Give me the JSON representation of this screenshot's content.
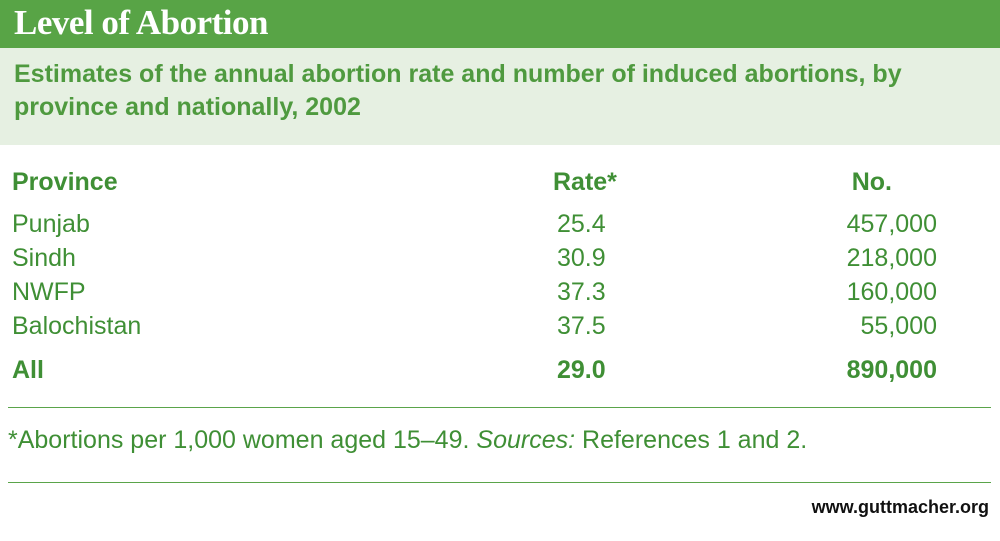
{
  "title": "Level of Abortion",
  "subtitle": "Estimates of the annual abortion rate and number of induced abortions, by province and nationally, 2002",
  "chart_data": {
    "type": "table",
    "columns": [
      "Province",
      "Rate*",
      "No."
    ],
    "rows": [
      {
        "province": "Punjab",
        "rate": "25.4",
        "number": "457,000"
      },
      {
        "province": "Sindh",
        "rate": "30.9",
        "number": "218,000"
      },
      {
        "province": "NWFP",
        "rate": "37.3",
        "number": "160,000"
      },
      {
        "province": "Balochistan",
        "rate": "37.5",
        "number": "55,000"
      }
    ],
    "total": {
      "province": "All",
      "rate": "29.0",
      "number": "890,000"
    }
  },
  "footnote": {
    "note": "*Abortions per 1,000 women aged 15–49.",
    "sources_label": "Sources:",
    "sources_text": "References 1 and 2."
  },
  "website": "www.guttmacher.org",
  "colors": {
    "title_bar": "#58a446",
    "subtitle_band": "#e6f0e2",
    "text_green": "#3f8f35"
  }
}
